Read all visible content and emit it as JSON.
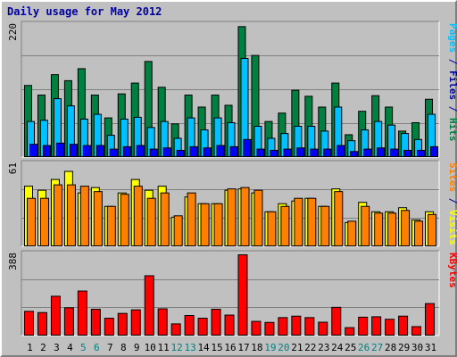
{
  "chart_data": {
    "type": "bar",
    "title": "Daily usage for May 2012",
    "categories": [
      "1",
      "2",
      "3",
      "4",
      "5",
      "6",
      "7",
      "8",
      "9",
      "10",
      "11",
      "12",
      "13",
      "14",
      "15",
      "16",
      "17",
      "18",
      "19",
      "20",
      "21",
      "22",
      "23",
      "24",
      "25",
      "26",
      "27",
      "28",
      "29",
      "30",
      "31"
    ],
    "weekend_days": [
      "5",
      "6",
      "12",
      "13",
      "19",
      "20",
      "26",
      "27"
    ],
    "panels": [
      {
        "id": "top",
        "max_label": "220",
        "ymax": 220,
        "axis_labels": [
          {
            "text": "Pages",
            "color": "#00c0ff"
          },
          {
            "text": " / ",
            "color": "#0000a0"
          },
          {
            "text": "Files",
            "color": "#0000a0"
          },
          {
            "text": " / ",
            "color": "#0000a0"
          },
          {
            "text": "Hits",
            "color": "#008040"
          }
        ],
        "series": [
          {
            "name": "Hits",
            "color": "#008040",
            "values": [
              120,
              104,
              138,
              128,
              148,
              104,
              66,
              106,
              124,
              160,
              117,
              56,
              104,
              84,
              104,
              87,
              218,
              170,
              60,
              74,
              112,
              102,
              84,
              124,
              38,
              77,
              103,
              84,
              44,
              58,
              97
            ]
          },
          {
            "name": "Files",
            "color": "#00c0ff",
            "values": [
              60,
              62,
              98,
              86,
              64,
              72,
              37,
              64,
              67,
              50,
              60,
              32,
              66,
              46,
              66,
              58,
              165,
              52,
              32,
              40,
              52,
              52,
              44,
              84,
              28,
              46,
              60,
              54,
              40,
              30,
              72
            ]
          },
          {
            "name": "Pages",
            "color": "#0000ff",
            "values": [
              22,
              20,
              24,
              22,
              20,
              20,
              14,
              18,
              20,
              14,
              16,
              12,
              18,
              16,
              20,
              18,
              30,
              14,
              12,
              14,
              16,
              14,
              14,
              20,
              10,
              14,
              16,
              14,
              12,
              12,
              18
            ]
          }
        ]
      },
      {
        "id": "middle",
        "max_label": "61",
        "ymax": 61,
        "axis_labels": [
          {
            "text": "Sites",
            "color": "#ff8000"
          },
          {
            "text": " / ",
            "color": "#0000a0"
          },
          {
            "text": "Visits",
            "color": "#ffff00"
          }
        ],
        "series": [
          {
            "name": "Visits",
            "color": "#ffff00",
            "values": [
              45,
              42,
              50,
              56,
              40,
              44,
              30,
              40,
              50,
              42,
              45,
              22,
              37,
              32,
              32,
              42,
              43,
              40,
              26,
              32,
              34,
              36,
              30,
              43,
              18,
              33,
              26,
              26,
              29,
              20,
              26
            ]
          },
          {
            "name": "Sites",
            "color": "#ff8000",
            "values": [
              36,
              36,
              46,
              46,
              45,
              41,
              30,
              39,
              45,
              36,
              40,
              23,
              40,
              32,
              32,
              43,
              44,
              42,
              26,
              30,
              36,
              36,
              30,
              41,
              19,
              30,
              25,
              25,
              27,
              19,
              24
            ]
          }
        ]
      },
      {
        "id": "bottom",
        "max_label": "388",
        "ymax": 388,
        "axis_labels": [
          {
            "text": "KBytes",
            "color": "#ff0000"
          }
        ],
        "series": [
          {
            "name": "KBytes",
            "color": "#ff0000",
            "values": [
              118,
              112,
              190,
              135,
              215,
              128,
              85,
              108,
              125,
              288,
              130,
              58,
              98,
              85,
              128,
              100,
              388,
              70,
              65,
              88,
              95,
              88,
              66,
              137,
              40,
              90,
              92,
              80,
              95,
              45,
              155
            ]
          }
        ]
      }
    ]
  }
}
